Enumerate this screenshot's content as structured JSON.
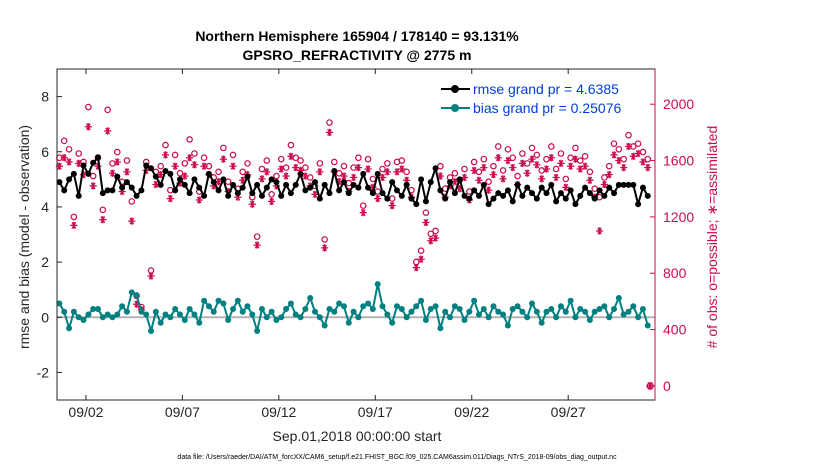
{
  "chart_data": {
    "type": "line",
    "title_line1": "Northern Hemisphere 165904 / 178140 = 93.131%",
    "title_line2": "GPSRO_REFRACTIVITY @ 2775 m",
    "xlabel": "Sep.01,2018 00:00:00 start",
    "ylabel": "rmse and bias (model - observation)",
    "ylabel_right": "# of obs: o=possible; ∗=assimilated",
    "xlim": [
      0.5,
      31.5
    ],
    "ylim": [
      -3,
      9
    ],
    "ylim_right": [
      -100,
      2250
    ],
    "x_tick_values": [
      2,
      7,
      12,
      17,
      22,
      27
    ],
    "x_tick_labels": [
      "09/02",
      "09/07",
      "09/12",
      "09/17",
      "09/22",
      "09/27"
    ],
    "y_tick_values": [
      -2,
      0,
      2,
      4,
      6,
      8
    ],
    "y_tick_labels": [
      "-2",
      "0",
      "2",
      "4",
      "6",
      "8"
    ],
    "y_right_tick_values": [
      0,
      400,
      800,
      1200,
      1600,
      2000
    ],
    "y_right_tick_labels": [
      "0",
      "400",
      "800",
      "1200",
      "1600",
      "2000"
    ],
    "footnote": "data file: /Users/raeder/DAI/ATM_forcXX/CAM6_setup/f.e21.FHIST_BGC.f09_025.CAM6assim.011/Diags_NTrS_2018-09/obs_diag_output.nc",
    "series": [
      {
        "name": "rmse",
        "legend": "rmse grand pr = 4.6385",
        "color": "#000000",
        "x": [
          0.625,
          0.875,
          1.125,
          1.375,
          1.625,
          1.875,
          2.125,
          2.375,
          2.625,
          2.875,
          3.125,
          3.375,
          3.625,
          3.875,
          4.125,
          4.375,
          4.625,
          4.875,
          5.125,
          5.375,
          5.625,
          5.875,
          6.125,
          6.375,
          6.625,
          6.875,
          7.125,
          7.375,
          7.625,
          7.875,
          8.125,
          8.375,
          8.625,
          8.875,
          9.125,
          9.375,
          9.625,
          9.875,
          10.125,
          10.375,
          10.625,
          10.875,
          11.125,
          11.375,
          11.625,
          11.875,
          12.125,
          12.375,
          12.625,
          12.875,
          13.125,
          13.375,
          13.625,
          13.875,
          14.125,
          14.375,
          14.625,
          14.875,
          15.125,
          15.375,
          15.625,
          15.875,
          16.125,
          16.375,
          16.625,
          16.875,
          17.125,
          17.375,
          17.625,
          17.875,
          18.125,
          18.375,
          18.625,
          18.875,
          19.125,
          19.375,
          19.625,
          19.875,
          20.125,
          20.375,
          20.625,
          20.875,
          21.125,
          21.375,
          21.625,
          21.875,
          22.125,
          22.375,
          22.625,
          22.875,
          23.125,
          23.375,
          23.625,
          23.875,
          24.125,
          24.375,
          24.625,
          24.875,
          25.125,
          25.375,
          25.625,
          25.875,
          26.125,
          26.375,
          26.625,
          26.875,
          27.125,
          27.375,
          27.625,
          27.875,
          28.125,
          28.375,
          28.625,
          28.875,
          29.125,
          29.375,
          29.625,
          29.875,
          30.125,
          30.375,
          30.625,
          30.875,
          31.125
        ],
        "values": [
          4.9,
          4.6,
          5.0,
          5.2,
          4.4,
          5.5,
          5.2,
          5.6,
          5.8,
          4.5,
          4.6,
          4.6,
          5.1,
          4.7,
          4.9,
          4.7,
          4.4,
          4.6,
          5.5,
          5.4,
          5.1,
          4.8,
          5.3,
          5.2,
          4.6,
          5.0,
          4.8,
          4.5,
          5.0,
          4.7,
          4.4,
          5.2,
          4.9,
          4.6,
          5.0,
          4.4,
          4.8,
          4.5,
          4.7,
          5.1,
          4.5,
          4.8,
          4.4,
          4.7,
          5.0,
          4.9,
          4.4,
          4.8,
          4.5,
          4.8,
          5.2,
          4.6,
          4.7,
          4.9,
          4.3,
          4.8,
          4.5,
          5.3,
          4.6,
          4.9,
          4.5,
          4.8,
          4.7,
          5.2,
          4.7,
          4.5,
          5.2,
          4.5,
          4.3,
          4.9,
          4.6,
          4.4,
          4.8,
          4.3,
          4.1,
          5.0,
          4.2,
          4.9,
          5.4,
          4.6,
          4.3,
          4.9,
          4.5,
          5.0,
          4.4,
          4.3,
          4.6,
          4.4,
          4.8,
          4.1,
          4.3,
          4.5,
          4.4,
          4.6,
          4.2,
          4.8,
          4.4,
          4.7,
          4.5,
          4.3,
          4.7,
          4.5,
          4.8,
          4.2,
          4.5,
          4.3,
          4.6,
          4.1,
          4.4,
          4.7,
          4.5,
          4.3,
          4.6,
          4.4,
          4.7,
          4.5,
          4.8,
          4.8,
          4.8,
          4.8,
          4.1,
          4.7,
          4.4
        ],
        "marker": "circle-filled"
      },
      {
        "name": "bias",
        "legend": "bias grand pr = 0.25076",
        "color": "#008080",
        "x": [
          0.625,
          0.875,
          1.125,
          1.375,
          1.625,
          1.875,
          2.125,
          2.375,
          2.625,
          2.875,
          3.125,
          3.375,
          3.625,
          3.875,
          4.125,
          4.375,
          4.625,
          4.875,
          5.125,
          5.375,
          5.625,
          5.875,
          6.125,
          6.375,
          6.625,
          6.875,
          7.125,
          7.375,
          7.625,
          7.875,
          8.125,
          8.375,
          8.625,
          8.875,
          9.125,
          9.375,
          9.625,
          9.875,
          10.125,
          10.375,
          10.625,
          10.875,
          11.125,
          11.375,
          11.625,
          11.875,
          12.125,
          12.375,
          12.625,
          12.875,
          13.125,
          13.375,
          13.625,
          13.875,
          14.125,
          14.375,
          14.625,
          14.875,
          15.125,
          15.375,
          15.625,
          15.875,
          16.125,
          16.375,
          16.625,
          16.875,
          17.125,
          17.375,
          17.625,
          17.875,
          18.125,
          18.375,
          18.625,
          18.875,
          19.125,
          19.375,
          19.625,
          19.875,
          20.125,
          20.375,
          20.625,
          20.875,
          21.125,
          21.375,
          21.625,
          21.875,
          22.125,
          22.375,
          22.625,
          22.875,
          23.125,
          23.375,
          23.625,
          23.875,
          24.125,
          24.375,
          24.625,
          24.875,
          25.125,
          25.375,
          25.625,
          25.875,
          26.125,
          26.375,
          26.625,
          26.875,
          27.125,
          27.375,
          27.625,
          27.875,
          28.125,
          28.375,
          28.625,
          28.875,
          29.125,
          29.375,
          29.625,
          29.875,
          30.125,
          30.375,
          30.625,
          30.875,
          31.125
        ],
        "values": [
          0.5,
          0.2,
          -0.4,
          0.2,
          0.0,
          -0.1,
          0.1,
          0.3,
          0.3,
          0.0,
          0.1,
          0.0,
          0.1,
          0.4,
          0.2,
          0.9,
          0.8,
          0.2,
          0.1,
          -0.5,
          0.2,
          -0.2,
          0.1,
          0.0,
          0.3,
          0.1,
          -0.1,
          0.3,
          0.1,
          -0.2,
          0.6,
          0.4,
          0.2,
          0.6,
          0.5,
          -0.1,
          0.3,
          0.6,
          0.2,
          0.4,
          0.1,
          -0.5,
          0.3,
          0.0,
          0.2,
          -0.1,
          0.0,
          0.3,
          0.5,
          0.1,
          0.0,
          0.3,
          0.7,
          0.2,
          0.0,
          -0.3,
          0.3,
          0.2,
          0.5,
          0.4,
          -0.2,
          0.2,
          0.0,
          0.4,
          0.5,
          0.3,
          1.2,
          0.4,
          0.1,
          -0.2,
          0.4,
          0.3,
          0.0,
          0.2,
          0.4,
          0.6,
          -0.1,
          0.3,
          0.4,
          -0.4,
          0.2,
          0.0,
          0.4,
          0.3,
          -0.1,
          0.2,
          0.6,
          0.1,
          0.3,
          0.0,
          0.4,
          0.2,
          0.1,
          -0.3,
          0.3,
          0.4,
          0.2,
          0.0,
          0.5,
          0.2,
          -0.2,
          0.2,
          0.3,
          0.0,
          0.4,
          0.2,
          0.6,
          0.0,
          0.3,
          0.2,
          -0.1,
          0.2,
          0.3,
          0.4,
          0.0,
          0.3,
          0.7,
          0.1,
          0.2,
          0.4,
          0.0,
          0.3,
          -0.3
        ],
        "marker": "circle-filled"
      },
      {
        "name": "possible",
        "color": "#cc0a50",
        "axis": "right",
        "marker": "circle-open",
        "x": [
          0.625,
          0.875,
          1.125,
          1.375,
          1.625,
          1.875,
          2.125,
          2.375,
          2.625,
          2.875,
          3.125,
          3.375,
          3.625,
          3.875,
          4.125,
          4.375,
          4.625,
          4.875,
          5.125,
          5.375,
          5.625,
          5.875,
          6.125,
          6.375,
          6.625,
          6.875,
          7.125,
          7.375,
          7.625,
          7.875,
          8.125,
          8.375,
          8.625,
          8.875,
          9.125,
          9.375,
          9.625,
          9.875,
          10.125,
          10.375,
          10.625,
          10.875,
          11.125,
          11.375,
          11.625,
          11.875,
          12.125,
          12.375,
          12.625,
          12.875,
          13.125,
          13.375,
          13.625,
          13.875,
          14.125,
          14.375,
          14.625,
          14.875,
          15.125,
          15.375,
          15.625,
          15.875,
          16.125,
          16.375,
          16.625,
          16.875,
          17.125,
          17.375,
          17.625,
          17.875,
          18.125,
          18.375,
          18.625,
          18.875,
          19.125,
          19.375,
          19.625,
          19.875,
          20.125,
          20.375,
          20.625,
          20.875,
          21.125,
          21.375,
          21.625,
          21.875,
          22.125,
          22.375,
          22.625,
          22.875,
          23.125,
          23.375,
          23.625,
          23.875,
          24.125,
          24.375,
          24.625,
          24.875,
          25.125,
          25.375,
          25.625,
          25.875,
          26.125,
          26.375,
          26.625,
          26.875,
          27.125,
          27.375,
          27.625,
          27.875,
          28.125,
          28.375,
          28.625,
          28.875,
          29.125,
          29.375,
          29.625,
          29.875,
          30.125,
          30.375,
          30.625,
          30.875,
          31.125
        ],
        "values": [
          1620,
          1740,
          1680,
          1200,
          1650,
          1590,
          1980,
          1490,
          1620,
          1250,
          1960,
          1580,
          1660,
          1450,
          1600,
          1310,
          640,
          560,
          1590,
          820,
          1520,
          1560,
          1710,
          1390,
          1640,
          1510,
          1580,
          1750,
          1650,
          1380,
          1620,
          1560,
          1480,
          1520,
          1690,
          1450,
          1640,
          1400,
          1520,
          1580,
          1340,
          1060,
          1540,
          1600,
          1360,
          1490,
          1610,
          1550,
          1710,
          1620,
          1600,
          1550,
          1480,
          1420,
          1580,
          1040,
          1870,
          1590,
          1510,
          1560,
          1440,
          1550,
          1620,
          1280,
          1610,
          1470,
          1380,
          1540,
          1580,
          1330,
          1590,
          1600,
          1520,
          1390,
          880,
          960,
          1230,
          1080,
          1100,
          1560,
          1400,
          1480,
          1510,
          1460,
          1540,
          1380,
          1590,
          1520,
          1610,
          1450,
          1560,
          1700,
          1530,
          1680,
          1620,
          1490,
          1650,
          1580,
          1690,
          1640,
          1530,
          1610,
          1700,
          1540,
          1650,
          1470,
          1620,
          1690,
          1600,
          1630,
          1520,
          1400,
          1340,
          1480,
          1560,
          1720,
          1680,
          1610,
          1780,
          1700,
          1720,
          1660,
          1610
        ]
      },
      {
        "name": "assimilated",
        "color": "#cc0a50",
        "axis": "right",
        "marker": "asterisk",
        "x": [
          0.625,
          0.875,
          1.125,
          1.375,
          1.625,
          1.875,
          2.125,
          2.375,
          2.625,
          2.875,
          3.125,
          3.375,
          3.625,
          3.875,
          4.125,
          4.375,
          4.625,
          4.875,
          5.125,
          5.375,
          5.625,
          5.875,
          6.125,
          6.375,
          6.625,
          6.875,
          7.125,
          7.375,
          7.625,
          7.875,
          8.125,
          8.375,
          8.625,
          8.875,
          9.125,
          9.375,
          9.625,
          9.875,
          10.125,
          10.375,
          10.625,
          10.875,
          11.125,
          11.375,
          11.625,
          11.875,
          12.125,
          12.375,
          12.625,
          12.875,
          13.125,
          13.375,
          13.625,
          13.875,
          14.125,
          14.375,
          14.625,
          14.875,
          15.125,
          15.375,
          15.625,
          15.875,
          16.125,
          16.375,
          16.625,
          16.875,
          17.125,
          17.375,
          17.625,
          17.875,
          18.125,
          18.375,
          18.625,
          18.875,
          19.125,
          19.375,
          19.625,
          19.875,
          20.125,
          20.375,
          20.625,
          20.875,
          21.125,
          21.375,
          21.625,
          21.875,
          22.125,
          22.375,
          22.625,
          22.875,
          23.125,
          23.375,
          23.625,
          23.875,
          24.125,
          24.375,
          24.625,
          24.875,
          25.125,
          25.375,
          25.625,
          25.875,
          26.125,
          26.375,
          26.625,
          26.875,
          27.125,
          27.375,
          27.625,
          27.875,
          28.125,
          28.375,
          28.625,
          28.875,
          29.125,
          29.375,
          29.625,
          29.875,
          30.125,
          30.375,
          30.625,
          30.875,
          31.125
        ],
        "values": [
          1560,
          1620,
          1590,
          1140,
          1580,
          1500,
          1840,
          1420,
          1560,
          1180,
          1810,
          1510,
          1590,
          1380,
          1520,
          1170,
          580,
          540,
          1530,
          780,
          1430,
          1500,
          1640,
          1330,
          1560,
          1440,
          1490,
          1620,
          1570,
          1320,
          1560,
          1500,
          1420,
          1450,
          1610,
          1380,
          1560,
          1340,
          1460,
          1500,
          1290,
          1000,
          1470,
          1520,
          1310,
          1420,
          1540,
          1490,
          1630,
          1550,
          1530,
          1490,
          1420,
          1360,
          1520,
          980,
          1800,
          1520,
          1450,
          1490,
          1380,
          1480,
          1550,
          1230,
          1540,
          1410,
          1330,
          1480,
          1520,
          1280,
          1520,
          1540,
          1460,
          1340,
          840,
          900,
          1160,
          1030,
          1050,
          1490,
          1340,
          1420,
          1450,
          1400,
          1480,
          1320,
          1530,
          1460,
          1550,
          1390,
          1500,
          1620,
          1470,
          1600,
          1550,
          1430,
          1580,
          1510,
          1610,
          1570,
          1470,
          1540,
          1620,
          1480,
          1580,
          1410,
          1560,
          1610,
          1540,
          1560,
          1460,
          1340,
          1100,
          1430,
          1500,
          1640,
          1600,
          1550,
          1700,
          1630,
          1650,
          1590,
          1550
        ]
      }
    ],
    "annotation_point": {
      "x": 31.25,
      "y_right": 0
    }
  }
}
